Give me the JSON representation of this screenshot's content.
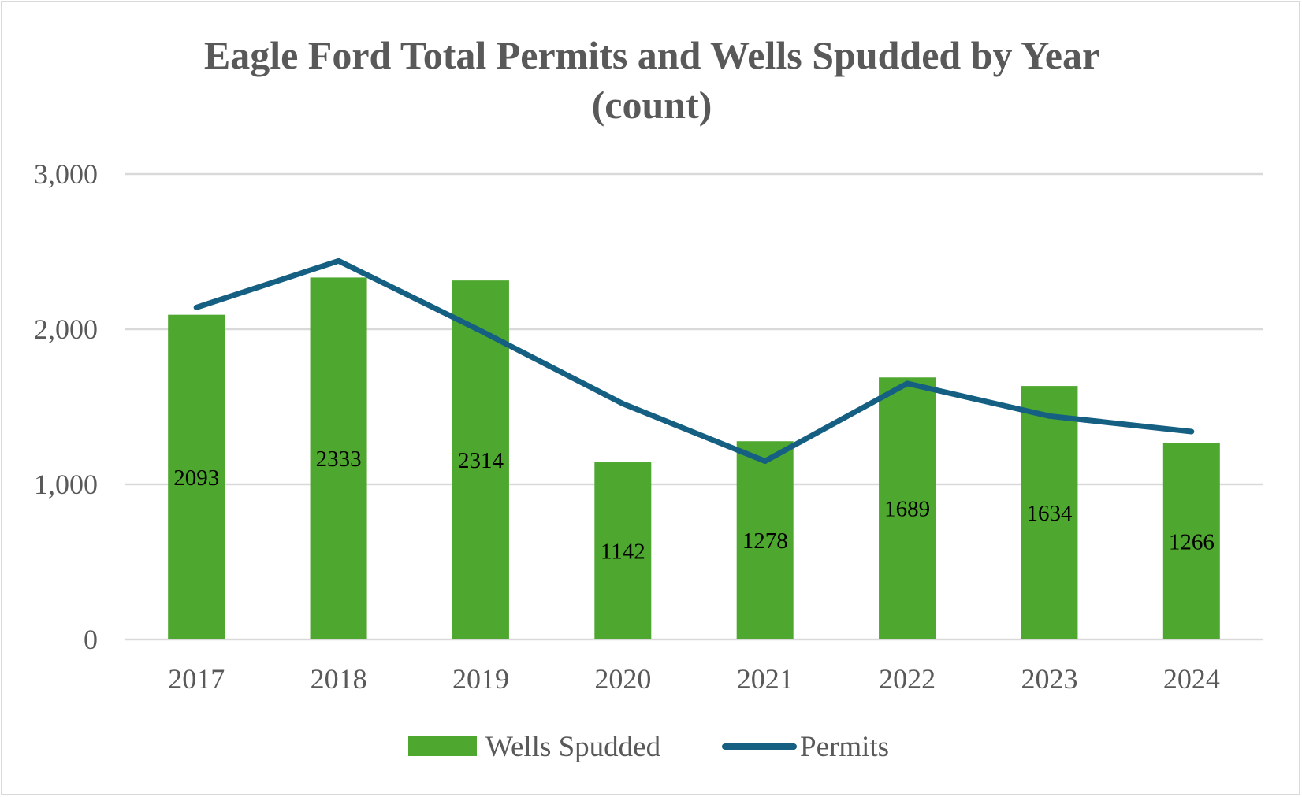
{
  "chart_data": {
    "type": "bar",
    "title_lines": [
      "Eagle Ford Total Permits and Wells Spudded by Year",
      "(count)"
    ],
    "categories": [
      "2017",
      "2018",
      "2019",
      "2020",
      "2021",
      "2022",
      "2023",
      "2024"
    ],
    "series": [
      {
        "name": "Wells Spudded",
        "type": "bar",
        "color": "#4ea72e",
        "values": [
          2093,
          2333,
          2314,
          1142,
          1278,
          1689,
          1634,
          1266
        ],
        "data_labels": [
          "2093",
          "2333",
          "2314",
          "1142",
          "1278",
          "1689",
          "1634",
          "1266"
        ]
      },
      {
        "name": "Permits",
        "type": "line",
        "color": "#156082",
        "values": [
          2140,
          2440,
          1990,
          1520,
          1150,
          1650,
          1440,
          1340
        ]
      }
    ],
    "xlabel": "",
    "ylabel": "",
    "ylim": [
      0,
      3000
    ],
    "yticks": [
      0,
      1000,
      2000,
      3000
    ],
    "ytick_labels": [
      "0",
      "1,000",
      "2,000",
      "3,000"
    ],
    "grid": true,
    "legend_position": "bottom-center"
  }
}
